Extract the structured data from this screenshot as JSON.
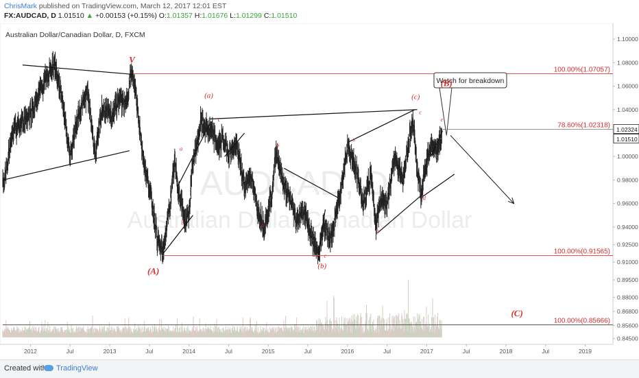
{
  "header": {
    "author": "ChrisMark",
    "published": "published on TradingView.com, March 12, 2017 12:01 EST",
    "symbol": "FX:AUDCAD, D",
    "last": "1.01510",
    "change_arrow": "▲",
    "change": "+0.00153 (+0.15%)",
    "o_label": "O:",
    "o": "1.01357",
    "h_label": "H:",
    "h": "1.01676",
    "l_label": "L:",
    "l": "1.01299",
    "c_label": "C:",
    "c": "1.01510"
  },
  "footer": {
    "created_with": "Created with",
    "brand": "TradingView",
    "brand_icon": "cloud-icon"
  },
  "chart_data": {
    "type": "candlestick",
    "title": "Australian Dollar/Canadian Dollar, D, FXCM",
    "watermark_symbol": "AUDCAD, D",
    "watermark_name": "Australian Dollar/Canadian Dollar",
    "colors": {
      "price": "#222222",
      "level_line": "#e05050",
      "level_text": "#d62c2c",
      "wave_label": "#d62c2c",
      "volume": "#b9c7b0"
    },
    "x_axis": {
      "ticks": [
        {
          "label": "2012",
          "t": 2012.0
        },
        {
          "label": "Jul",
          "t": 2012.5
        },
        {
          "label": "2013",
          "t": 2013.0
        },
        {
          "label": "Jul",
          "t": 2013.5
        },
        {
          "label": "2014",
          "t": 2014.0
        },
        {
          "label": "Jul",
          "t": 2014.5
        },
        {
          "label": "2015",
          "t": 2015.0
        },
        {
          "label": "Jul",
          "t": 2015.5
        },
        {
          "label": "2016",
          "t": 2016.0
        },
        {
          "label": "Jul",
          "t": 2016.5
        },
        {
          "label": "2017",
          "t": 2017.0
        },
        {
          "label": "Jul",
          "t": 2017.5
        },
        {
          "label": "2018",
          "t": 2018.0
        },
        {
          "label": "Jul",
          "t": 2018.5
        },
        {
          "label": "2019",
          "t": 2019.0
        }
      ]
    },
    "y_axis": {
      "range": [
        0.84,
        1.11
      ],
      "ticks": [
        "1.10000",
        "1.08000",
        "1.06000",
        "1.04000",
        "1.02000",
        "1.00000",
        "0.98000",
        "0.96000",
        "0.94000",
        "0.92500",
        "0.91000",
        "0.89500",
        "0.88000",
        "0.86800",
        "0.85600",
        "0.84500"
      ],
      "current_labels": [
        {
          "text": "1.02324",
          "value": 1.02324
        },
        {
          "text": "1.01510",
          "value": 1.0151
        }
      ]
    },
    "price_series": [
      {
        "t": 2011.65,
        "v": 0.975
      },
      {
        "t": 2011.78,
        "v": 1.02
      },
      {
        "t": 2011.9,
        "v": 1.03
      },
      {
        "t": 2012.03,
        "v": 1.04
      },
      {
        "t": 2012.15,
        "v": 1.06
      },
      {
        "t": 2012.3,
        "v": 1.08
      },
      {
        "t": 2012.4,
        "v": 1.05
      },
      {
        "t": 2012.5,
        "v": 1.0
      },
      {
        "t": 2012.6,
        "v": 1.035
      },
      {
        "t": 2012.72,
        "v": 1.055
      },
      {
        "t": 2012.82,
        "v": 1.0
      },
      {
        "t": 2012.9,
        "v": 1.04
      },
      {
        "t": 2013.02,
        "v": 1.035
      },
      {
        "t": 2013.13,
        "v": 1.05
      },
      {
        "t": 2013.2,
        "v": 1.042
      },
      {
        "t": 2013.27,
        "v": 1.07
      },
      {
        "t": 2013.32,
        "v": 1.06
      },
      {
        "t": 2013.42,
        "v": 1.0
      },
      {
        "t": 2013.55,
        "v": 0.955
      },
      {
        "t": 2013.6,
        "v": 0.93
      },
      {
        "t": 2013.67,
        "v": 0.918
      },
      {
        "t": 2013.73,
        "v": 0.945
      },
      {
        "t": 2013.78,
        "v": 0.97
      },
      {
        "t": 2013.82,
        "v": 0.995
      },
      {
        "t": 2013.86,
        "v": 0.975
      },
      {
        "t": 2013.95,
        "v": 0.945
      },
      {
        "t": 2014.0,
        "v": 0.952
      },
      {
        "t": 2014.05,
        "v": 0.995
      },
      {
        "t": 2014.1,
        "v": 1.01
      },
      {
        "t": 2014.15,
        "v": 1.03
      },
      {
        "t": 2014.2,
        "v": 1.025
      },
      {
        "t": 2014.3,
        "v": 1.02
      },
      {
        "t": 2014.37,
        "v": 1.008
      },
      {
        "t": 2014.42,
        "v": 1.015
      },
      {
        "t": 2014.5,
        "v": 1.003
      },
      {
        "t": 2014.6,
        "v": 1.01
      },
      {
        "t": 2014.7,
        "v": 0.975
      },
      {
        "t": 2014.78,
        "v": 0.985
      },
      {
        "t": 2014.85,
        "v": 0.96
      },
      {
        "t": 2014.95,
        "v": 0.94
      },
      {
        "t": 2015.05,
        "v": 0.97
      },
      {
        "t": 2015.1,
        "v": 1.005
      },
      {
        "t": 2015.2,
        "v": 0.975
      },
      {
        "t": 2015.3,
        "v": 0.96
      },
      {
        "t": 2015.35,
        "v": 0.945
      },
      {
        "t": 2015.45,
        "v": 0.955
      },
      {
        "t": 2015.55,
        "v": 0.93
      },
      {
        "t": 2015.63,
        "v": 0.917
      },
      {
        "t": 2015.7,
        "v": 0.94
      },
      {
        "t": 2015.8,
        "v": 0.93
      },
      {
        "t": 2015.88,
        "v": 0.96
      },
      {
        "t": 2015.95,
        "v": 0.985
      },
      {
        "t": 2016.0,
        "v": 1.01
      },
      {
        "t": 2016.05,
        "v": 1.0
      },
      {
        "t": 2016.12,
        "v": 0.985
      },
      {
        "t": 2016.2,
        "v": 0.96
      },
      {
        "t": 2016.3,
        "v": 0.985
      },
      {
        "t": 2016.36,
        "v": 0.94
      },
      {
        "t": 2016.42,
        "v": 0.965
      },
      {
        "t": 2016.5,
        "v": 0.96
      },
      {
        "t": 2016.6,
        "v": 1.0
      },
      {
        "t": 2016.7,
        "v": 0.98
      },
      {
        "t": 2016.78,
        "v": 1.015
      },
      {
        "t": 2016.83,
        "v": 1.03
      },
      {
        "t": 2016.88,
        "v": 0.99
      },
      {
        "t": 2016.93,
        "v": 0.966
      },
      {
        "t": 2016.98,
        "v": 0.99
      },
      {
        "t": 2017.05,
        "v": 1.01
      },
      {
        "t": 2017.12,
        "v": 1.005
      },
      {
        "t": 2017.19,
        "v": 1.0155
      }
    ],
    "levels": [
      {
        "label": "100.00%(1.07057)",
        "value": 1.07057,
        "x_from": 2013.3
      },
      {
        "label": "78.60%(1.02318)",
        "value": 1.02318,
        "x_from": 2017.2
      },
      {
        "label": "100.00%(0.91565)",
        "value": 0.91565,
        "x_from": 2013.67
      },
      {
        "label": "100.00%(0.85666)",
        "value": 0.85666,
        "x_from": 2011.65
      }
    ],
    "trendlines": [
      {
        "from": {
          "t": 2011.9,
          "v": 1.078
        },
        "to": {
          "t": 2013.3,
          "v": 1.07
        }
      },
      {
        "from": {
          "t": 2011.65,
          "v": 0.98
        },
        "to": {
          "t": 2013.25,
          "v": 1.005
        }
      },
      {
        "from": {
          "t": 2013.67,
          "v": 0.917
        },
        "to": {
          "t": 2014.05,
          "v": 0.95
        }
      },
      {
        "from": {
          "t": 2013.86,
          "v": 0.975
        },
        "to": {
          "t": 2014.28,
          "v": 1.03
        }
      },
      {
        "from": {
          "t": 2014.25,
          "v": 1.032
        },
        "to": {
          "t": 2016.88,
          "v": 1.04
        }
      },
      {
        "from": {
          "t": 2014.45,
          "v": 1.0
        },
        "to": {
          "t": 2014.7,
          "v": 1.02
        }
      },
      {
        "from": {
          "t": 2015.2,
          "v": 0.99
        },
        "to": {
          "t": 2015.88,
          "v": 0.965
        }
      },
      {
        "from": {
          "t": 2015.63,
          "v": 0.917
        },
        "to": {
          "t": 2015.72,
          "v": 0.955
        }
      },
      {
        "from": {
          "t": 2016.0,
          "v": 1.012
        },
        "to": {
          "t": 2016.85,
          "v": 1.04
        }
      },
      {
        "from": {
          "t": 2016.38,
          "v": 0.935
        },
        "to": {
          "t": 2016.95,
          "v": 0.968
        }
      },
      {
        "from": {
          "t": 2016.95,
          "v": 0.966
        },
        "to": {
          "t": 2017.35,
          "v": 0.985
        }
      },
      {
        "from": {
          "t": 2017.05,
          "v": 1.0
        },
        "to": {
          "t": 2017.2,
          "v": 1.022
        }
      }
    ],
    "forecast_arrow": {
      "from": {
        "t": 2017.3,
        "v": 1.018
      },
      "to": {
        "t": 2018.1,
        "v": 0.96
      }
    },
    "callout": {
      "text": "Watch for breakdown",
      "anchor": {
        "t": 2017.25,
        "v": 1.018
      },
      "box": {
        "t": 2017.55,
        "v": 1.065
      }
    },
    "wave_labels": [
      {
        "text": "V",
        "t": 2013.28,
        "v": 1.08,
        "size": "large"
      },
      {
        "text": "(A)",
        "t": 2013.55,
        "v": 0.9,
        "size": "large"
      },
      {
        "text": "(a)",
        "t": 2014.25,
        "v": 1.05,
        "size": "medium"
      },
      {
        "text": "(b)",
        "t": 2015.68,
        "v": 0.905,
        "size": "medium"
      },
      {
        "text": "(c)",
        "t": 2016.86,
        "v": 1.049,
        "size": "medium"
      },
      {
        "text": "(B)",
        "t": 2017.25,
        "v": 1.06,
        "size": "large"
      },
      {
        "text": "(C)",
        "t": 2018.14,
        "v": 0.864,
        "size": "large"
      },
      {
        "text": "a",
        "t": 2013.9,
        "v": 1.005,
        "size": "small"
      },
      {
        "text": "b",
        "t": 2013.92,
        "v": 0.942,
        "size": "small"
      },
      {
        "text": "c",
        "t": 2014.38,
        "v": 1.03,
        "size": "small"
      },
      {
        "text": "b",
        "t": 2015.12,
        "v": 1.008,
        "size": "small"
      },
      {
        "text": "a",
        "t": 2014.93,
        "v": 0.94,
        "size": "small"
      },
      {
        "text": "c",
        "t": 2015.72,
        "v": 0.914,
        "size": "small"
      },
      {
        "text": "a",
        "t": 2016.08,
        "v": 1.013,
        "size": "small"
      },
      {
        "text": "b",
        "t": 2016.38,
        "v": 0.935,
        "size": "small"
      },
      {
        "text": "c",
        "t": 2016.92,
        "v": 1.036,
        "size": "small"
      },
      {
        "text": "d",
        "t": 2016.97,
        "v": 0.963,
        "size": "small"
      },
      {
        "text": "e",
        "t": 2017.19,
        "v": 1.03,
        "size": "small"
      }
    ],
    "volume": {
      "x_start": 2011.65,
      "x_end": 2017.19,
      "note": "shown as fills only"
    },
    "grid": false,
    "legend": "none"
  }
}
